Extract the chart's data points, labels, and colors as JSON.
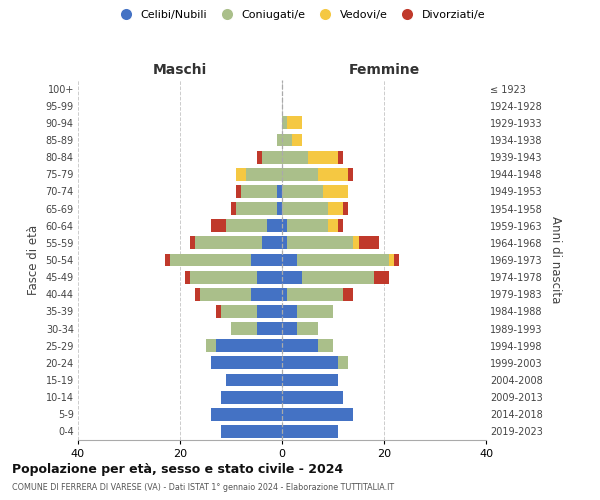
{
  "age_groups": [
    "0-4",
    "5-9",
    "10-14",
    "15-19",
    "20-24",
    "25-29",
    "30-34",
    "35-39",
    "40-44",
    "45-49",
    "50-54",
    "55-59",
    "60-64",
    "65-69",
    "70-74",
    "75-79",
    "80-84",
    "85-89",
    "90-94",
    "95-99",
    "100+"
  ],
  "birth_years": [
    "2019-2023",
    "2014-2018",
    "2009-2013",
    "2004-2008",
    "1999-2003",
    "1994-1998",
    "1989-1993",
    "1984-1988",
    "1979-1983",
    "1974-1978",
    "1969-1973",
    "1964-1968",
    "1959-1963",
    "1954-1958",
    "1949-1953",
    "1944-1948",
    "1939-1943",
    "1934-1938",
    "1929-1933",
    "1924-1928",
    "≤ 1923"
  ],
  "maschi": {
    "celibi": [
      12,
      14,
      12,
      11,
      14,
      13,
      5,
      5,
      6,
      5,
      6,
      4,
      3,
      1,
      1,
      0,
      0,
      0,
      0,
      0,
      0
    ],
    "coniugati": [
      0,
      0,
      0,
      0,
      0,
      2,
      5,
      7,
      10,
      13,
      16,
      13,
      8,
      8,
      7,
      7,
      4,
      1,
      0,
      0,
      0
    ],
    "vedovi": [
      0,
      0,
      0,
      0,
      0,
      0,
      0,
      0,
      0,
      0,
      0,
      0,
      0,
      0,
      0,
      2,
      0,
      0,
      0,
      0,
      0
    ],
    "divorziati": [
      0,
      0,
      0,
      0,
      0,
      0,
      0,
      1,
      1,
      1,
      1,
      1,
      3,
      1,
      1,
      0,
      1,
      0,
      0,
      0,
      0
    ]
  },
  "femmine": {
    "nubili": [
      11,
      14,
      12,
      11,
      11,
      7,
      3,
      3,
      1,
      4,
      3,
      1,
      1,
      0,
      0,
      0,
      0,
      0,
      0,
      0,
      0
    ],
    "coniugate": [
      0,
      0,
      0,
      0,
      2,
      3,
      4,
      7,
      11,
      14,
      18,
      13,
      8,
      9,
      8,
      7,
      5,
      2,
      1,
      0,
      0
    ],
    "vedove": [
      0,
      0,
      0,
      0,
      0,
      0,
      0,
      0,
      0,
      0,
      1,
      1,
      2,
      3,
      5,
      6,
      6,
      2,
      3,
      0,
      0
    ],
    "divorziate": [
      0,
      0,
      0,
      0,
      0,
      0,
      0,
      0,
      2,
      3,
      1,
      4,
      1,
      1,
      0,
      1,
      1,
      0,
      0,
      0,
      0
    ]
  },
  "colors": {
    "celibi": "#4472C4",
    "coniugati": "#AABF8A",
    "vedovi": "#F5C842",
    "divorziati": "#C0392B"
  },
  "title": "Popolazione per età, sesso e stato civile - 2024",
  "subtitle": "COMUNE DI FERRERA DI VARESE (VA) - Dati ISTAT 1° gennaio 2024 - Elaborazione TUTTITALIA.IT",
  "xlabel_left": "Maschi",
  "xlabel_right": "Femmine",
  "ylabel_left": "Fasce di età",
  "ylabel_right": "Anni di nascita",
  "xlim": 40,
  "legend_labels": [
    "Celibi/Nubili",
    "Coniugati/e",
    "Vedovi/e",
    "Divorziati/e"
  ],
  "background_color": "#ffffff",
  "grid_color": "#cccccc"
}
